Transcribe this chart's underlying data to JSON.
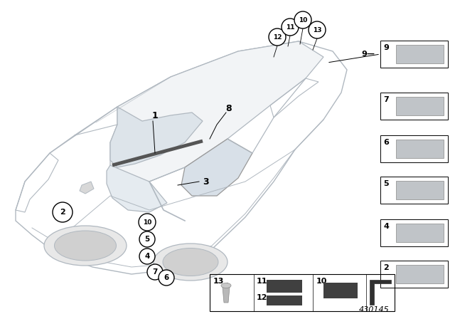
{
  "bg_color": "#ffffff",
  "diagram_number": "430145",
  "cc": "#b0b8c0",
  "lw": 0.9
}
